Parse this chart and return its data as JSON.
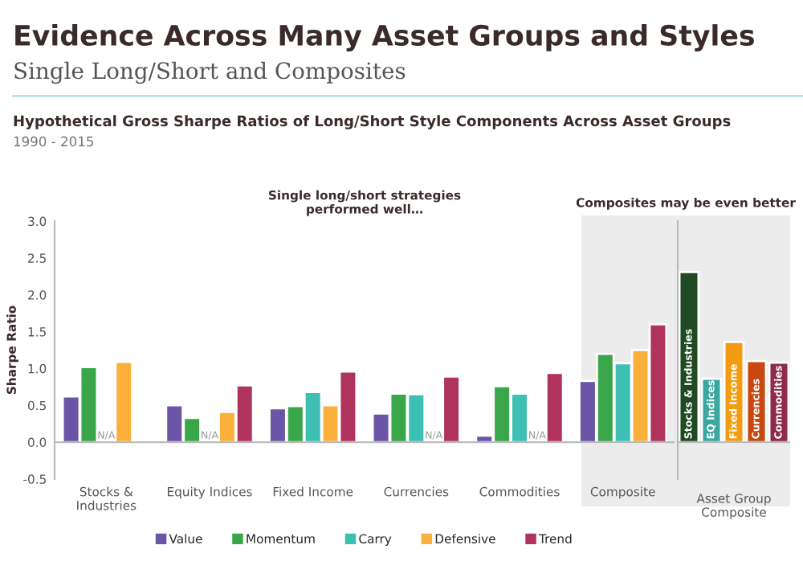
{
  "chart_data": [
    {
      "type": "bar",
      "title": "Evidence Across Many Asset Groups and Styles",
      "subtitle": "Single Long/Short and Composites",
      "ylabel": "Sharpe Ratio",
      "annotations": [
        "Hypothetical Gross Sharpe Ratios of Long/Short Style Components Across Asset Groups",
        "1990 - 2015",
        "Single long/short strategies\nperformed well…",
        "Composites may be even better"
      ],
      "categories": [
        "Stocks &\nIndustries",
        "Equity Indices",
        "Fixed Income",
        "Currencies",
        "Commodities",
        "Composite"
      ],
      "series": [
        {
          "name": "Value",
          "color": "#6a55a6",
          "values": [
            0.62,
            0.5,
            0.46,
            0.39,
            0.09,
            0.83
          ]
        },
        {
          "name": "Momentum",
          "color": "#3aa64a",
          "values": [
            1.02,
            0.33,
            0.49,
            0.66,
            0.76,
            1.2
          ]
        },
        {
          "name": "Carry",
          "color": "#3dbfb3",
          "values": [
            null,
            null,
            0.68,
            0.65,
            0.66,
            1.07
          ],
          "value_labels": [
            "N/A",
            "N/A",
            null,
            null,
            null,
            null
          ]
        },
        {
          "name": "Defensive",
          "color": "#fbb03b",
          "values": [
            1.09,
            0.41,
            0.5,
            null,
            null,
            1.25
          ],
          "value_labels": [
            null,
            null,
            null,
            "N/A",
            "N/A",
            null
          ]
        },
        {
          "name": "Trend",
          "color": "#b0335e",
          "values": [
            null,
            0.77,
            0.96,
            0.89,
            0.94,
            1.6
          ]
        }
      ],
      "ylim": [
        -0.5,
        3.0
      ],
      "yticks": [
        {
          "value": -0.5,
          "label": "-0.5"
        },
        {
          "value": 0,
          "label": "0.0"
        },
        {
          "value": 0.5,
          "label": "0.5"
        },
        {
          "value": 1,
          "label": "1.0"
        },
        {
          "value": 1.5,
          "label": "1.5"
        },
        {
          "value": 2,
          "label": "2.0"
        },
        {
          "value": 2.5,
          "label": "2.5"
        },
        {
          "value": 3,
          "label": "3.0"
        }
      ],
      "legend": "bottom"
    },
    {
      "type": "bar",
      "xlabel": "Asset Group\nComposite",
      "categories": [
        "Stocks & Industries",
        "EQ Indices",
        "Fixed Income",
        "Currencies",
        "Commodities"
      ],
      "values": [
        2.31,
        0.86,
        1.36,
        1.1,
        1.08
      ],
      "colors": [
        "#1f4a22",
        "#3aa8a0",
        "#f39c12",
        "#c9480f",
        "#8e2a4a"
      ],
      "ylim": [
        -0.5,
        3.0
      ],
      "tick_labels": false
    }
  ]
}
